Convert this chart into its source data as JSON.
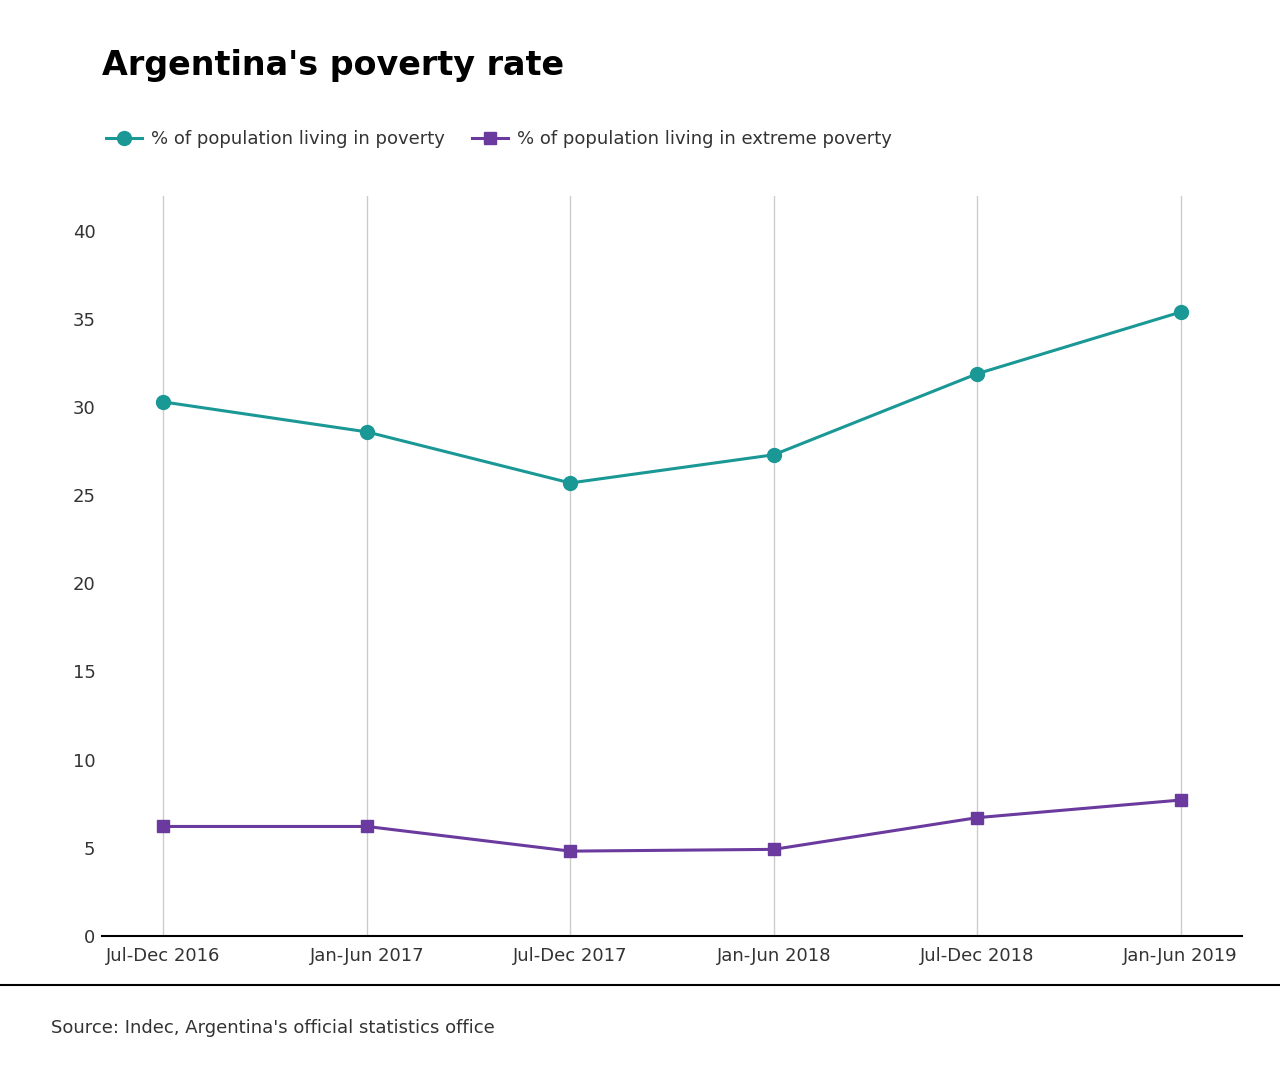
{
  "title": "Argentina's poverty rate",
  "categories": [
    "Jul-Dec 2016",
    "Jan-Jun 2017",
    "Jul-Dec 2017",
    "Jan-Jun 2018",
    "Jul-Dec 2018",
    "Jan-Jun 2019"
  ],
  "poverty_values": [
    30.3,
    28.6,
    25.7,
    27.3,
    31.9,
    35.4
  ],
  "extreme_poverty_values": [
    6.2,
    6.2,
    4.8,
    4.9,
    6.7,
    7.7
  ],
  "poverty_color": "#1a9896",
  "extreme_poverty_color": "#6b3a9e",
  "poverty_label": "% of population living in poverty",
  "extreme_poverty_label": "% of population living in extreme poverty",
  "yticks": [
    0,
    5,
    10,
    15,
    20,
    25,
    30,
    35,
    40
  ],
  "ylim": [
    0,
    42
  ],
  "source_text": "Source: Indec, Argentina's official statistics office",
  "background_color": "#ffffff",
  "grid_color": "#cccccc",
  "title_fontsize": 24,
  "legend_fontsize": 13,
  "tick_fontsize": 13,
  "source_fontsize": 13,
  "line_width": 2.2,
  "marker_size_poverty": 10,
  "marker_size_extreme": 8
}
